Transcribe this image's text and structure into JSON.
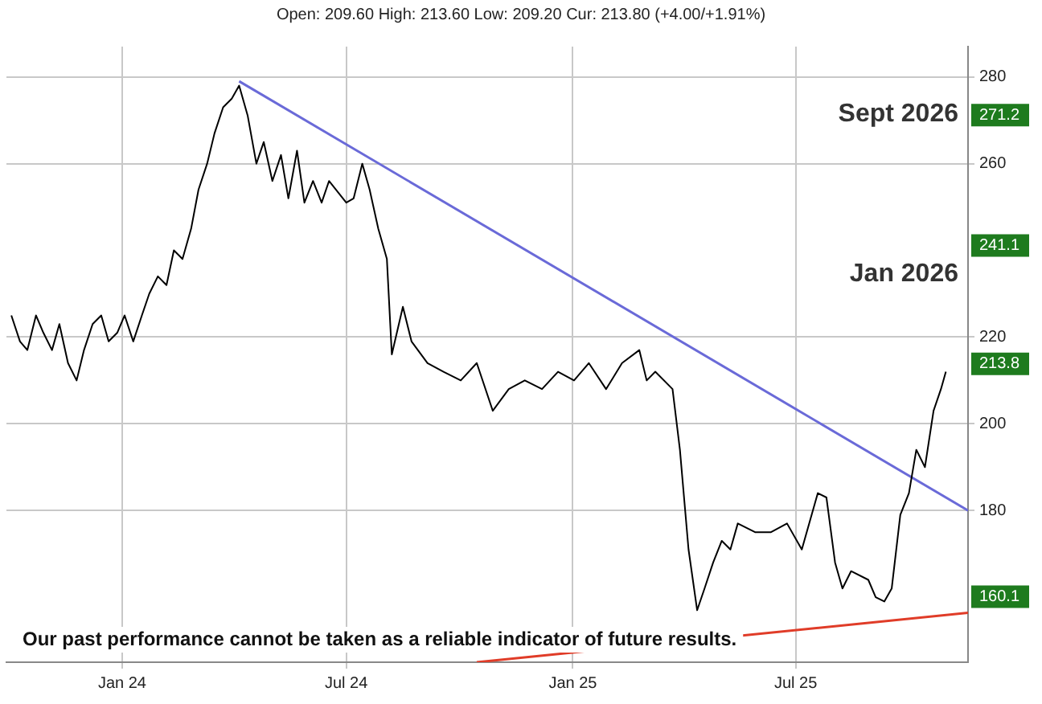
{
  "chart_data": {
    "type": "line",
    "subtitle": "Open: 209.60 High: 213.60 Low: 209.20 Cur: 213.80 (+4.00/+1.91%)",
    "x": [
      "2023-10-03",
      "2023-10-10",
      "2023-10-16",
      "2023-10-23",
      "2023-10-29",
      "2023-11-05",
      "2023-11-11",
      "2023-11-18",
      "2023-11-25",
      "2023-12-01",
      "2023-12-08",
      "2023-12-15",
      "2023-12-21",
      "2023-12-28",
      "2024-01-03",
      "2024-01-10",
      "2024-01-17",
      "2024-01-23",
      "2024-01-30",
      "2024-02-06",
      "2024-02-12",
      "2024-02-19",
      "2024-02-26",
      "2024-03-03",
      "2024-03-10",
      "2024-03-16",
      "2024-03-23",
      "2024-03-30",
      "2024-04-05",
      "2024-04-12",
      "2024-04-19",
      "2024-04-25",
      "2024-05-02",
      "2024-05-09",
      "2024-05-15",
      "2024-05-22",
      "2024-05-28",
      "2024-06-04",
      "2024-06-11",
      "2024-06-17",
      "2024-07-01",
      "2024-07-07",
      "2024-07-14",
      "2024-07-20",
      "2024-07-27",
      "2024-08-03",
      "2024-08-07",
      "2024-08-16",
      "2024-08-23",
      "2024-09-05",
      "2024-09-18",
      "2024-10-02",
      "2024-10-15",
      "2024-10-28",
      "2024-11-10",
      "2024-11-23",
      "2024-12-07",
      "2024-12-20",
      "2025-01-02",
      "2025-01-14",
      "2025-01-28",
      "2025-02-10",
      "2025-02-24",
      "2025-03-02",
      "2025-03-09",
      "2025-03-23",
      "2025-03-29",
      "2025-04-05",
      "2025-04-12",
      "2025-04-18",
      "2025-04-25",
      "2025-05-02",
      "2025-05-09",
      "2025-05-15",
      "2025-05-29",
      "2025-06-11",
      "2025-06-24",
      "2025-07-06",
      "2025-07-19",
      "2025-07-26",
      "2025-08-02",
      "2025-08-08",
      "2025-08-15",
      "2025-08-29",
      "2025-09-04",
      "2025-09-11",
      "2025-09-17",
      "2025-09-24",
      "2025-10-01",
      "2025-10-07",
      "2025-10-14",
      "2025-10-21",
      "2025-10-27",
      "2025-10-31"
    ],
    "series": [
      {
        "color": "#000000",
        "values": [
          225,
          219,
          217,
          225,
          221,
          217,
          223,
          214,
          210,
          217,
          223,
          225,
          219,
          221,
          225,
          219,
          225,
          230,
          234,
          232,
          240,
          238,
          245,
          254,
          260,
          267,
          273,
          275,
          278,
          271,
          260,
          265,
          256,
          262,
          252,
          263,
          251,
          256,
          251,
          256,
          251,
          252,
          260,
          254,
          245,
          238,
          216,
          227,
          219,
          214,
          212,
          210,
          214,
          203,
          208,
          210,
          208,
          212,
          210,
          214,
          208,
          214,
          217,
          210,
          212,
          208,
          194,
          171,
          157,
          162,
          168,
          173,
          171,
          177,
          175,
          175,
          177,
          171,
          184,
          183,
          168,
          162,
          166,
          164,
          160,
          159,
          162,
          179,
          184,
          194,
          190,
          203,
          208,
          212
        ]
      },
      {
        "type": "line",
        "color": "#6a6ad8",
        "x": [
          "2024-04-05",
          "2025-11-18"
        ],
        "values": [
          279,
          180
        ]
      },
      {
        "type": "line",
        "color": "#e03c28",
        "x": [
          "2024-10-15",
          "2025-11-18"
        ],
        "values": [
          145,
          156.4
        ]
      }
    ],
    "xlim": [
      "2023-09-29",
      "2025-11-18"
    ],
    "xticks": [
      {
        "value": "2024-01-01",
        "label": "Jan 24"
      },
      {
        "value": "2024-07-01",
        "label": "Jul 24"
      },
      {
        "value": "2025-01-01",
        "label": "Jan 25"
      },
      {
        "value": "2025-07-01",
        "label": "Jul 25"
      }
    ],
    "ylim": [
      145,
      287
    ],
    "yticks": [
      180,
      200,
      220,
      260,
      280,
      {
        "value": 271.2,
        "label": "271.2"
      },
      {
        "value": 241.1,
        "label": "241.1"
      },
      {
        "value": 213.8,
        "label": "213.8"
      },
      {
        "value": 160.1,
        "label": "160.1"
      }
    ],
    "annotations": [
      "Sept 2026",
      "Jan 2026",
      "Our past performance cannot be taken as a reliable indicator of future results."
    ],
    "grid": true,
    "legend": false,
    "marker": "none",
    "line_style": "solid"
  }
}
